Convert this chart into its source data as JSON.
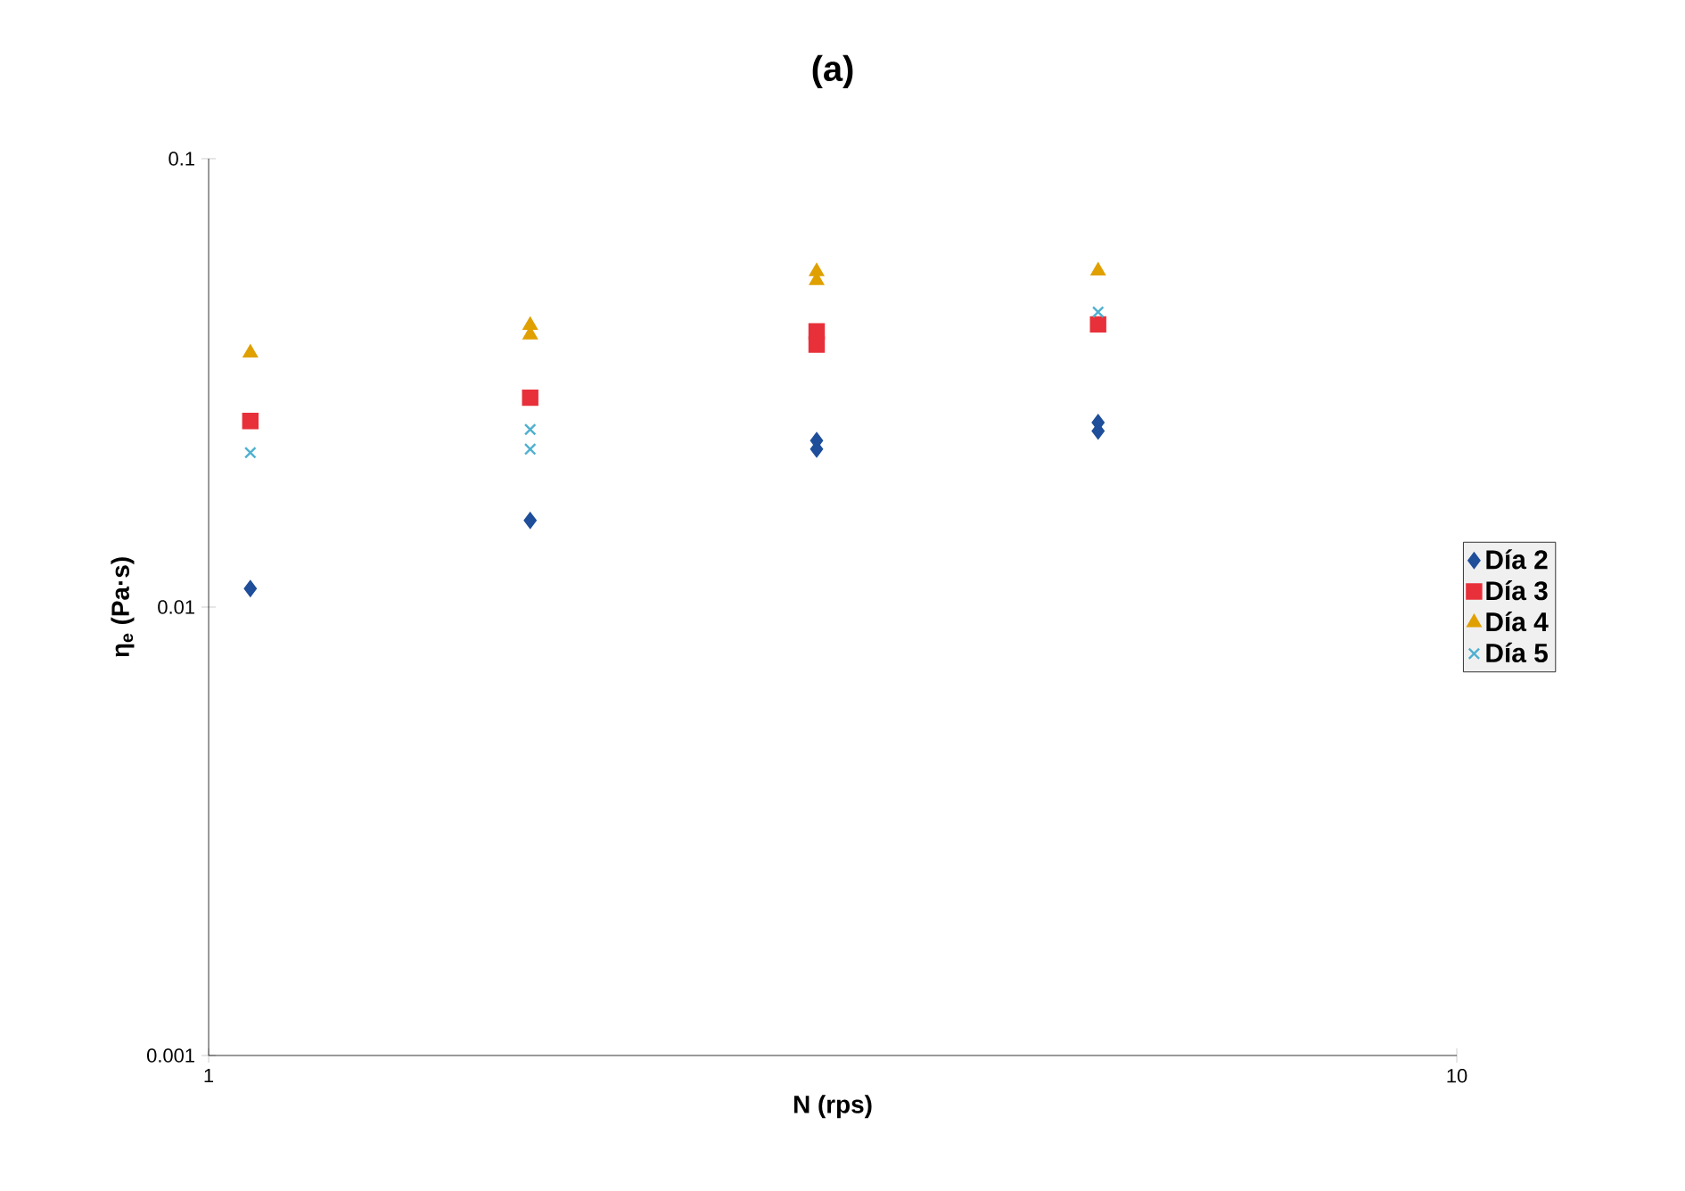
{
  "chart_data": {
    "type": "scatter",
    "title": "(a)",
    "xlabel": "N (rps)",
    "ylabel": "η$_{e}$ (Pa·s)",
    "log": "xy",
    "xlim": [
      1,
      10
    ],
    "xticks": [
      1,
      10
    ],
    "ylim": [
      0.001,
      0.1
    ],
    "yticks": [
      0.001,
      0.01,
      0.1
    ],
    "grid": false,
    "legend": "right",
    "series": [
      {
        "name": "Día 2",
        "color": "#1f4e9a",
        "marker": "diamond",
        "x": [
          1.08,
          1.81,
          3.07,
          3.07,
          5.16,
          5.16
        ],
        "values": [
          0.011,
          0.0156,
          0.0235,
          0.0225,
          0.0258,
          0.0247
        ]
      },
      {
        "name": "Día 3",
        "color": "#e8303a",
        "marker": "square",
        "x": [
          1.08,
          1.81,
          3.07,
          3.07,
          5.16
        ],
        "values": [
          0.026,
          0.0293,
          0.0412,
          0.0385,
          0.0427
        ]
      },
      {
        "name": "Día 4",
        "color": "#e0a000",
        "marker": "triangle",
        "x": [
          1.08,
          1.81,
          1.81,
          3.07,
          3.07,
          5.16
        ],
        "values": [
          0.0369,
          0.0425,
          0.0405,
          0.056,
          0.0535,
          0.0562
        ]
      },
      {
        "name": "Día 5",
        "color": "#4fb0d0",
        "marker": "cross",
        "x": [
          1.08,
          1.81,
          1.81,
          5.16
        ],
        "values": [
          0.0221,
          0.0249,
          0.0225,
          0.0455
        ]
      }
    ]
  }
}
